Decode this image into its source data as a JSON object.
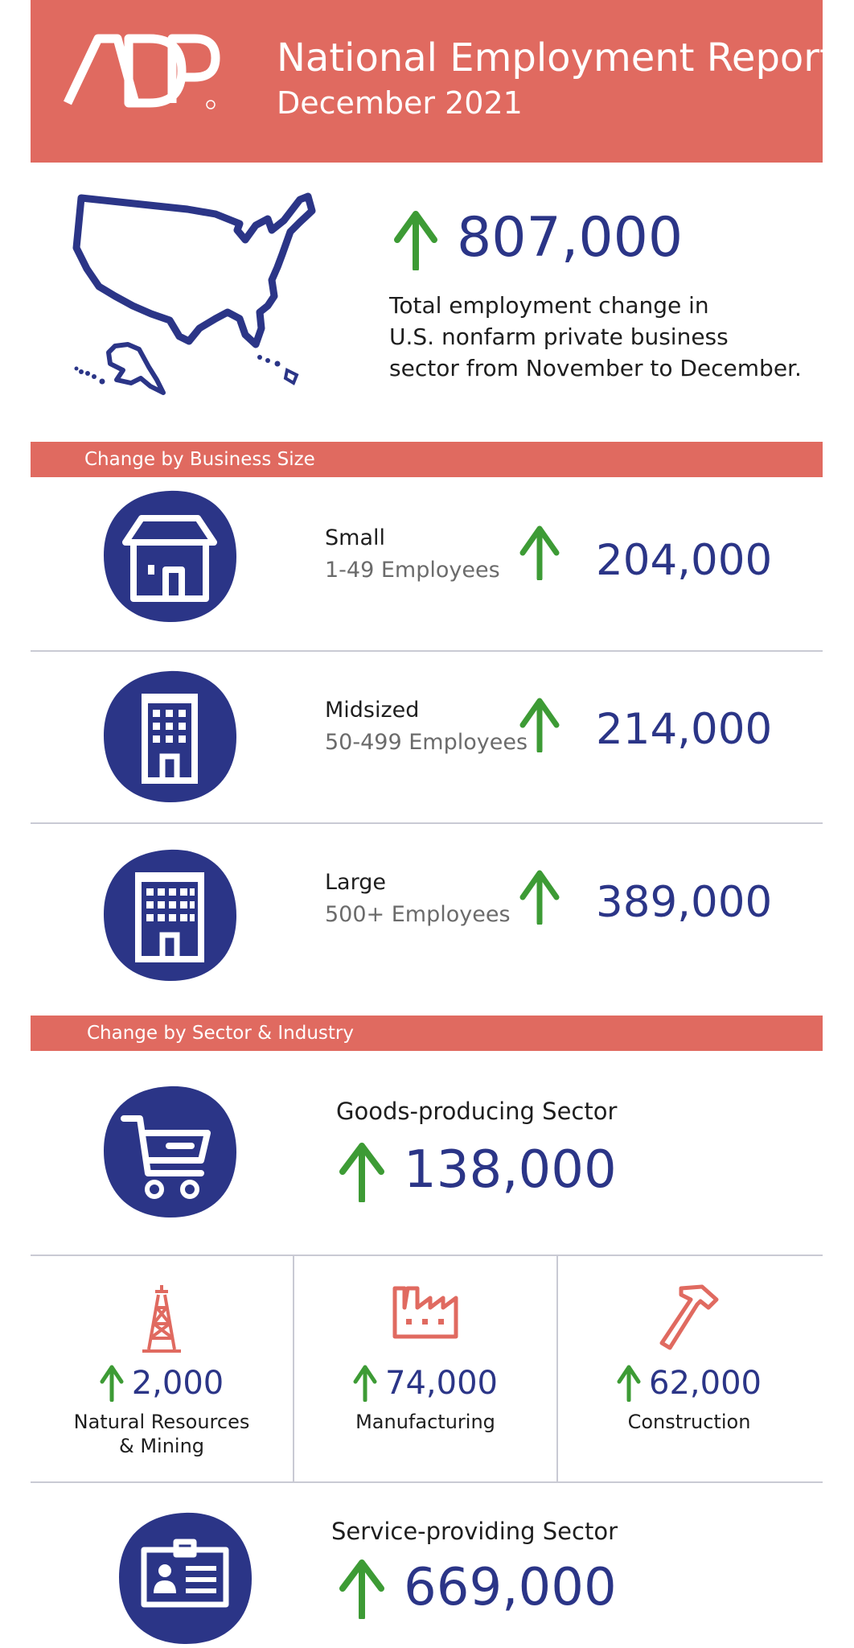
{
  "header": {
    "logo_text": "ADP",
    "title": "National Employment Report™",
    "subtitle": "December 2021",
    "color": "#e06a60"
  },
  "total": {
    "value": "807,000",
    "direction": "up",
    "description": [
      "Total employment change in",
      "U.S. nonfarm private business",
      "sector from November to December."
    ],
    "icon": "us-map-icon"
  },
  "business_size": {
    "heading": "Change by Business Size",
    "items": [
      {
        "name": "Small",
        "range": "1-49 Employees",
        "value": "204,000",
        "direction": "up",
        "icon": "house-icon"
      },
      {
        "name": "Midsized",
        "range": "50-499 Employees",
        "value": "214,000",
        "direction": "up",
        "icon": "office-building-icon"
      },
      {
        "name": "Large",
        "range": "500+ Employees",
        "value": "389,000",
        "direction": "up",
        "icon": "large-building-icon"
      }
    ]
  },
  "sector": {
    "heading": "Change by Sector & Industry",
    "goods": {
      "name": "Goods-producing Sector",
      "value": "138,000",
      "direction": "up",
      "icon": "shopping-cart-icon"
    },
    "industries": [
      {
        "value": "2,000",
        "name_lines": [
          "Natural Resources",
          "& Mining"
        ],
        "direction": "up",
        "icon": "oil-derrick-icon"
      },
      {
        "value": "74,000",
        "name_lines": [
          "Manufacturing"
        ],
        "direction": "up",
        "icon": "factory-icon"
      },
      {
        "value": "62,000",
        "name_lines": [
          "Construction"
        ],
        "direction": "up",
        "icon": "hammer-icon"
      }
    ],
    "service": {
      "name": "Service-providing Sector",
      "value": "669,000",
      "direction": "up",
      "icon": "id-badge-icon"
    }
  },
  "colors": {
    "navy": "#2b3587",
    "coral": "#e06a60",
    "green": "#3d9b35",
    "divider": "#c9cad4"
  }
}
